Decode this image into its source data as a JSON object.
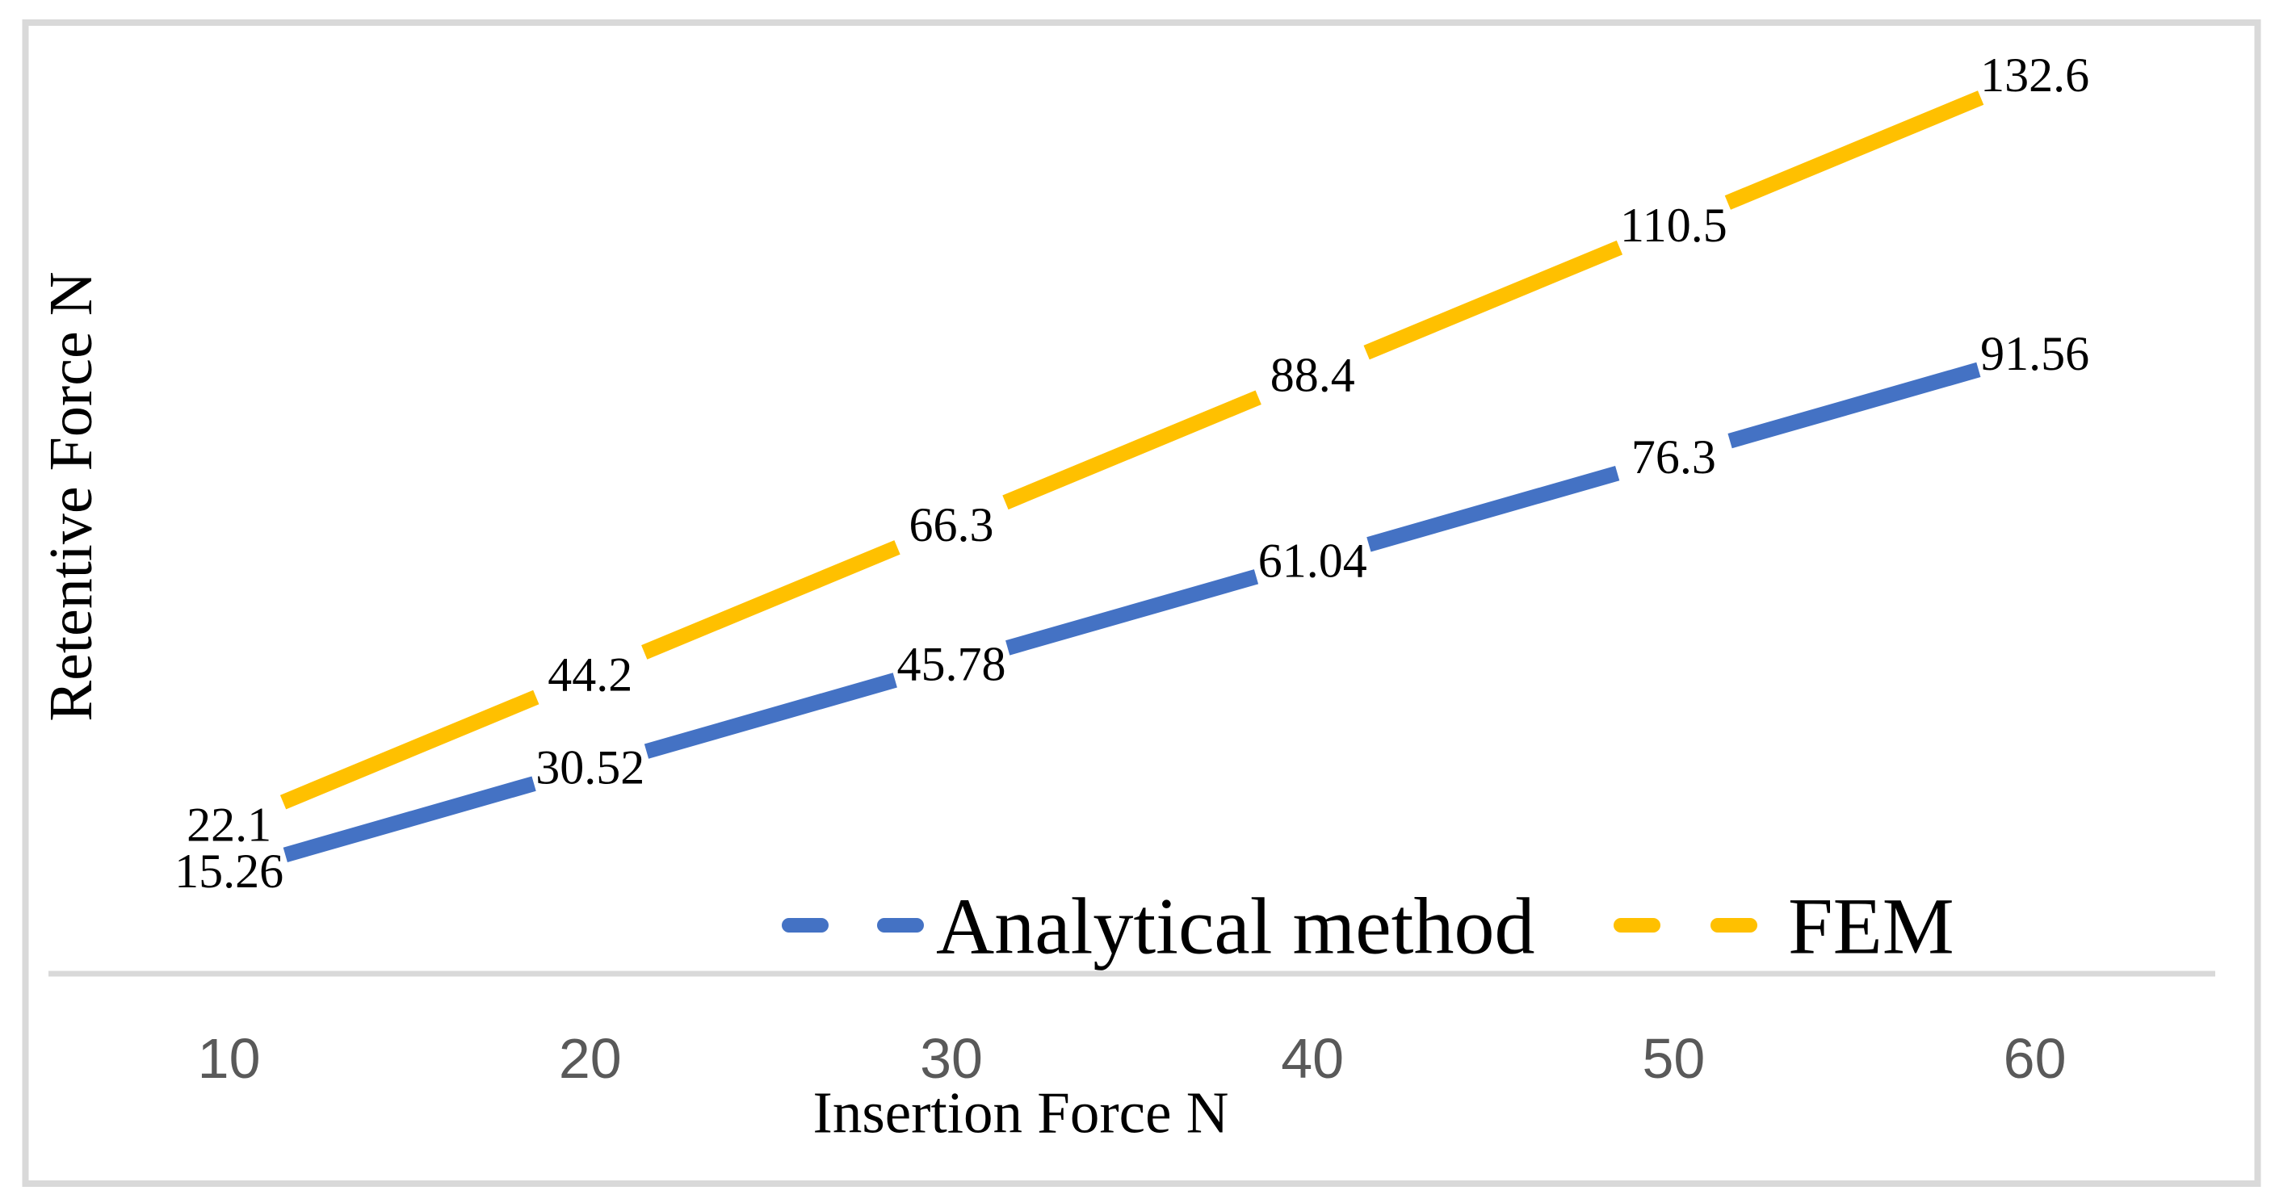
{
  "chart_data": {
    "type": "line",
    "title": "",
    "categories": [
      "10",
      "20",
      "30",
      "40",
      "50",
      "60"
    ],
    "x_values": [
      10,
      20,
      30,
      40,
      50,
      60
    ],
    "xlabel": "Insertion Force N",
    "ylabel": "Retentive Force N",
    "ylim": [
      0,
      140
    ],
    "grid": false,
    "legend_position": "bottom-center",
    "line_style": "dashed",
    "series": [
      {
        "name": "Analytical method",
        "values": [
          15.26,
          30.52,
          45.78,
          61.04,
          76.3,
          91.56
        ],
        "labels": [
          "15.26",
          "30.52",
          "45.78",
          "61.04",
          "76.3",
          "91.56"
        ],
        "color": "#4472C4"
      },
      {
        "name": "FEM",
        "values": [
          22.1,
          44.2,
          66.3,
          88.4,
          110.5,
          132.6
        ],
        "labels": [
          "22.1",
          "44.2",
          "66.3",
          "88.4",
          "110.5",
          "132.6"
        ],
        "color": "#FFC000"
      }
    ]
  },
  "colors": {
    "frame_border": "#D9D9D9",
    "axis_line": "#D9D9D9",
    "tick_label": "#595959",
    "data_label": "#000000",
    "axis_title": "#000000",
    "background": "#FFFFFF"
  }
}
